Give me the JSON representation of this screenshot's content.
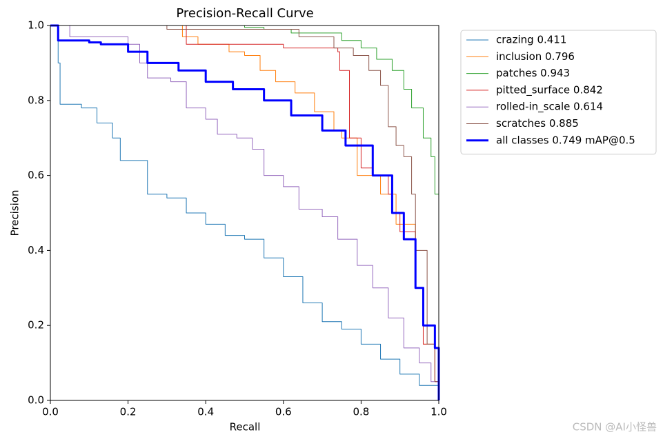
{
  "chart_data": {
    "type": "line",
    "title": "Precision-Recall Curve",
    "x_label": "Recall",
    "y_label": "Precision",
    "xlim": [
      0,
      1
    ],
    "ylim": [
      0,
      1
    ],
    "xticks": [
      {
        "value": 0,
        "label": "0.0"
      },
      {
        "value": 0.2,
        "label": "0.2"
      },
      {
        "value": 0.4,
        "label": "0.4"
      },
      {
        "value": 0.6,
        "label": "0.6"
      },
      {
        "value": 0.8,
        "label": "0.8"
      },
      {
        "value": 1,
        "label": "1.0"
      }
    ],
    "yticks": [
      {
        "value": 0,
        "label": "0.0"
      },
      {
        "value": 0.2,
        "label": "0.2"
      },
      {
        "value": 0.4,
        "label": "0.4"
      },
      {
        "value": 0.6,
        "label": "0.6"
      },
      {
        "value": 0.8,
        "label": "0.8"
      },
      {
        "value": 1,
        "label": "1.0"
      }
    ],
    "grid": false,
    "legend": "outside-right",
    "step": true,
    "series": [
      {
        "name": "crazing 0.411",
        "color": "#1f77b4",
        "linewidth": 1,
        "x": [
          0,
          0.02,
          0.025,
          0.08,
          0.12,
          0.16,
          0.18,
          0.25,
          0.3,
          0.35,
          0.4,
          0.45,
          0.5,
          0.55,
          0.6,
          0.65,
          0.7,
          0.75,
          0.8,
          0.85,
          0.9,
          0.95,
          1.0
        ],
        "values": [
          1.0,
          0.9,
          0.79,
          0.78,
          0.74,
          0.7,
          0.64,
          0.55,
          0.54,
          0.5,
          0.47,
          0.44,
          0.43,
          0.38,
          0.33,
          0.26,
          0.21,
          0.19,
          0.15,
          0.11,
          0.07,
          0.04,
          0
        ]
      },
      {
        "name": "inclusion 0.796",
        "color": "#ff7f0e",
        "linewidth": 1,
        "x": [
          0,
          0.2,
          0.34,
          0.38,
          0.46,
          0.5,
          0.54,
          0.58,
          0.63,
          0.68,
          0.73,
          0.75,
          0.79,
          0.85,
          0.89,
          0.94,
          0.96,
          0.99,
          1.0
        ],
        "values": [
          1.0,
          1.0,
          0.97,
          0.95,
          0.93,
          0.92,
          0.88,
          0.85,
          0.82,
          0.77,
          0.72,
          0.7,
          0.6,
          0.55,
          0.47,
          0.3,
          0.15,
          0.05,
          0
        ]
      },
      {
        "name": "patches 0.943",
        "color": "#2ca02c",
        "linewidth": 1,
        "x": [
          0,
          0.09,
          0.5,
          0.55,
          0.62,
          0.75,
          0.8,
          0.84,
          0.88,
          0.91,
          0.93,
          0.96,
          0.98,
          0.99,
          1.0,
          1.0
        ],
        "values": [
          1.0,
          1.0,
          0.995,
          0.99,
          0.98,
          0.96,
          0.94,
          0.91,
          0.88,
          0.83,
          0.78,
          0.7,
          0.65,
          0.55,
          0.47,
          0
        ]
      },
      {
        "name": "pitted_surface 0.842",
        "color": "#d62728",
        "linewidth": 1,
        "x": [
          0,
          0.34,
          0.35,
          0.6,
          0.74,
          0.745,
          0.77,
          0.8,
          0.83,
          0.87,
          0.88,
          0.9,
          0.94,
          0.96,
          0.99,
          1.0
        ],
        "values": [
          1.0,
          1.0,
          0.95,
          0.94,
          0.93,
          0.88,
          0.7,
          0.62,
          0.6,
          0.55,
          0.5,
          0.45,
          0.3,
          0.15,
          0.05,
          0
        ]
      },
      {
        "name": "rolled-in_scale 0.614",
        "color": "#9467bd",
        "linewidth": 1,
        "x": [
          0,
          0.05,
          0.2,
          0.23,
          0.25,
          0.31,
          0.35,
          0.4,
          0.43,
          0.48,
          0.52,
          0.55,
          0.6,
          0.64,
          0.7,
          0.74,
          0.79,
          0.83,
          0.87,
          0.91,
          0.95,
          0.98,
          1.0
        ],
        "values": [
          1.0,
          0.97,
          0.95,
          0.9,
          0.86,
          0.85,
          0.78,
          0.75,
          0.71,
          0.7,
          0.67,
          0.6,
          0.57,
          0.51,
          0.49,
          0.43,
          0.36,
          0.3,
          0.22,
          0.14,
          0.1,
          0.05,
          0
        ]
      },
      {
        "name": "scratches 0.885",
        "color": "#8c564b",
        "linewidth": 1,
        "x": [
          0,
          0.3,
          0.6,
          0.64,
          0.73,
          0.78,
          0.82,
          0.85,
          0.87,
          0.89,
          0.91,
          0.93,
          0.94,
          0.97,
          0.99,
          1.0
        ],
        "values": [
          1.0,
          0.99,
          0.99,
          0.97,
          0.94,
          0.92,
          0.88,
          0.84,
          0.73,
          0.68,
          0.65,
          0.55,
          0.4,
          0.15,
          0.05,
          0
        ]
      },
      {
        "name": "all classes 0.749 mAP@0.5",
        "color": "#0000ff",
        "linewidth": 3,
        "x": [
          0,
          0.02,
          0.1,
          0.13,
          0.2,
          0.25,
          0.33,
          0.4,
          0.47,
          0.55,
          0.62,
          0.7,
          0.76,
          0.83,
          0.88,
          0.91,
          0.94,
          0.96,
          0.99,
          1.0,
          1.0
        ],
        "values": [
          1.0,
          0.96,
          0.955,
          0.95,
          0.93,
          0.9,
          0.88,
          0.85,
          0.83,
          0.8,
          0.76,
          0.72,
          0.68,
          0.6,
          0.5,
          0.43,
          0.3,
          0.2,
          0.14,
          0.1,
          0
        ]
      }
    ]
  },
  "watermark": "CSDN @AI小怪兽"
}
